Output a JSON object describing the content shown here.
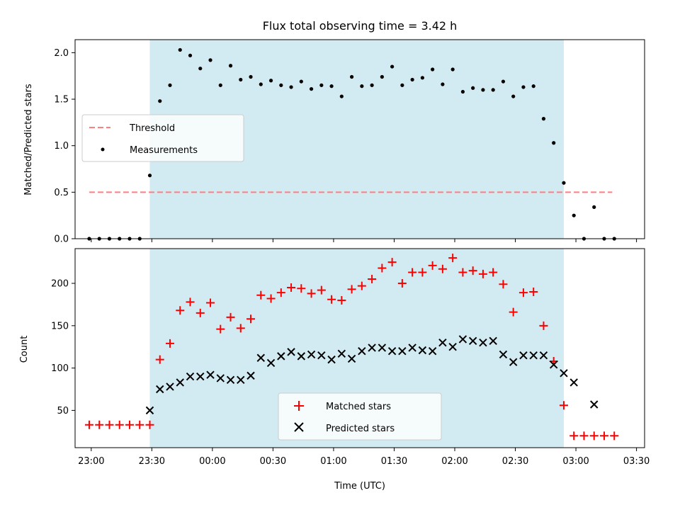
{
  "chart_data": [
    {
      "type": "scatter",
      "title": "Flux total observing time = 3.42 h",
      "ylabel": "Matched/Predicted stars",
      "ylim": [
        0,
        2.14
      ],
      "yticks": [
        0.0,
        0.5,
        1.0,
        1.5,
        2.0
      ],
      "ytick_labels": [
        "0.0",
        "0.5",
        "1.0",
        "1.5",
        "2.0"
      ],
      "legend": {
        "placement": "center-left"
      },
      "shaded_interval": {
        "start": "23:29",
        "end": "02:54",
        "color": "#add8e6"
      },
      "series": [
        {
          "name": "Threshold",
          "style": "dashed-line",
          "color": "#ff7f7f",
          "x": [
            "22:59",
            "03:18"
          ],
          "y": [
            0.5,
            0.5
          ]
        },
        {
          "name": "Measurements",
          "style": "dot",
          "color": "#000000",
          "x": [
            "22:59",
            "23:04",
            "23:09",
            "23:14",
            "23:19",
            "23:24",
            "23:29",
            "23:34",
            "23:39",
            "23:44",
            "23:49",
            "23:54",
            "23:59",
            "00:04",
            "00:09",
            "00:14",
            "00:19",
            "00:24",
            "00:29",
            "00:34",
            "00:39",
            "00:44",
            "00:49",
            "00:54",
            "00:59",
            "01:04",
            "01:09",
            "01:14",
            "01:19",
            "01:24",
            "01:29",
            "01:34",
            "01:39",
            "01:44",
            "01:49",
            "01:54",
            "01:59",
            "02:04",
            "02:09",
            "02:14",
            "02:19",
            "02:24",
            "02:29",
            "02:34",
            "02:39",
            "02:44",
            "02:49",
            "02:54",
            "02:59",
            "03:04",
            "03:09",
            "03:14",
            "03:19"
          ],
          "y": [
            0.0,
            0.0,
            0.0,
            0.0,
            0.0,
            0.0,
            0.68,
            1.48,
            1.65,
            2.03,
            1.97,
            1.83,
            1.92,
            1.65,
            1.86,
            1.71,
            1.74,
            1.66,
            1.7,
            1.65,
            1.63,
            1.69,
            1.61,
            1.65,
            1.64,
            1.53,
            1.74,
            1.64,
            1.65,
            1.74,
            1.85,
            1.65,
            1.71,
            1.73,
            1.82,
            1.66,
            1.82,
            1.58,
            1.62,
            1.6,
            1.6,
            1.69,
            1.53,
            1.63,
            1.64,
            1.29,
            1.03,
            0.6,
            0.25,
            0.0,
            0.34,
            0.0,
            0.0
          ]
        }
      ]
    },
    {
      "type": "scatter",
      "xlabel": "Time (UTC)",
      "ylabel": "Count",
      "ylim": [
        6,
        241
      ],
      "yticks": [
        50,
        100,
        150,
        200
      ],
      "ytick_labels": [
        "50",
        "100",
        "150",
        "200"
      ],
      "xlim": [
        "22:52",
        "03:34"
      ],
      "xticks": [
        "23:00",
        "23:30",
        "00:00",
        "00:30",
        "01:00",
        "01:30",
        "02:00",
        "02:30",
        "03:00",
        "03:30"
      ],
      "xtick_labels": [
        "23:00",
        "23:30",
        "00:00",
        "00:30",
        "01:00",
        "01:30",
        "02:00",
        "02:30",
        "03:00",
        "03:30"
      ],
      "legend": {
        "placement": "lower-center"
      },
      "shaded_interval": {
        "start": "23:29",
        "end": "02:54",
        "color": "#add8e6"
      },
      "series": [
        {
          "name": "Matched stars",
          "style": "plus",
          "color": "#ff0000",
          "x": [
            "22:59",
            "23:04",
            "23:09",
            "23:14",
            "23:19",
            "23:24",
            "23:29",
            "23:34",
            "23:39",
            "23:44",
            "23:49",
            "23:54",
            "23:59",
            "00:04",
            "00:09",
            "00:14",
            "00:19",
            "00:24",
            "00:29",
            "00:34",
            "00:39",
            "00:44",
            "00:49",
            "00:54",
            "00:59",
            "01:04",
            "01:09",
            "01:14",
            "01:19",
            "01:24",
            "01:29",
            "01:34",
            "01:39",
            "01:44",
            "01:49",
            "01:54",
            "01:59",
            "02:04",
            "02:09",
            "02:14",
            "02:19",
            "02:24",
            "02:29",
            "02:34",
            "02:39",
            "02:44",
            "02:49",
            "02:54",
            "02:59",
            "03:04",
            "03:09",
            "03:14",
            "03:19"
          ],
          "y": [
            33,
            33,
            33,
            33,
            33,
            33,
            33,
            110,
            129,
            168,
            178,
            165,
            177,
            146,
            160,
            147,
            158,
            186,
            182,
            189,
            195,
            194,
            188,
            192,
            181,
            180,
            193,
            197,
            205,
            218,
            225,
            200,
            213,
            213,
            221,
            217,
            230,
            213,
            215,
            211,
            213,
            199,
            166,
            189,
            190,
            150,
            108,
            56,
            20,
            20,
            20,
            20,
            20
          ]
        },
        {
          "name": "Predicted stars",
          "style": "x",
          "color": "#000000",
          "x": [
            "23:29",
            "23:34",
            "23:39",
            "23:44",
            "23:49",
            "23:54",
            "23:59",
            "00:04",
            "00:09",
            "00:14",
            "00:19",
            "00:24",
            "00:29",
            "00:34",
            "00:39",
            "00:44",
            "00:49",
            "00:54",
            "00:59",
            "01:04",
            "01:09",
            "01:14",
            "01:19",
            "01:24",
            "01:29",
            "01:34",
            "01:39",
            "01:44",
            "01:49",
            "01:54",
            "01:59",
            "02:04",
            "02:09",
            "02:14",
            "02:19",
            "02:24",
            "02:29",
            "02:34",
            "02:39",
            "02:44",
            "02:49",
            "02:54",
            "02:59",
            "03:09"
          ],
          "y": [
            50,
            75,
            78,
            83,
            90,
            90,
            92,
            88,
            86,
            86,
            91,
            112,
            106,
            114,
            119,
            114,
            116,
            115,
            110,
            117,
            111,
            120,
            124,
            124,
            120,
            120,
            124,
            121,
            120,
            130,
            125,
            134,
            132,
            130,
            132,
            116,
            107,
            115,
            115,
            115,
            104,
            94,
            83,
            57
          ]
        }
      ]
    }
  ]
}
